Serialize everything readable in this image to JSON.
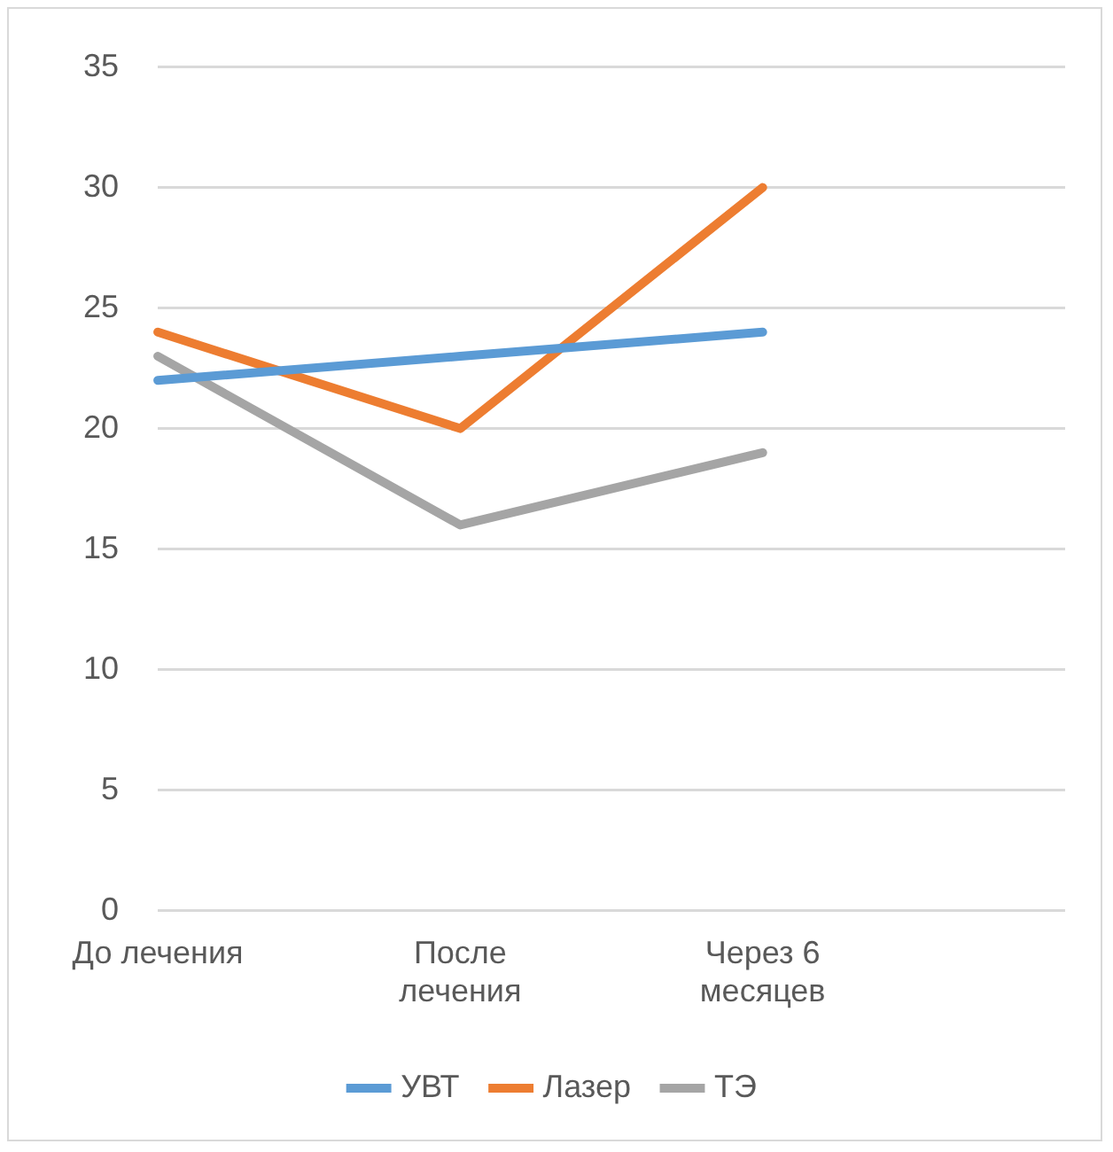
{
  "chart_data": {
    "type": "line",
    "categories": [
      "До лечения",
      "После лечения",
      "Через 6 месяцев",
      null
    ],
    "series": [
      {
        "name": "УВТ",
        "color": "#5b9bd5",
        "values": [
          22,
          23,
          24,
          null
        ]
      },
      {
        "name": "Лазер",
        "color": "#ed7d31",
        "values": [
          24,
          20,
          30,
          null
        ]
      },
      {
        "name": "ТЭ",
        "color": "#a5a5a5",
        "values": [
          23,
          16,
          19,
          null
        ]
      }
    ],
    "ylim": [
      0,
      35
    ],
    "yticks": [
      0,
      5,
      10,
      15,
      20,
      25,
      30,
      35
    ],
    "grid": "y",
    "legend": "bottom",
    "marker": "none",
    "line_style": "solid"
  }
}
